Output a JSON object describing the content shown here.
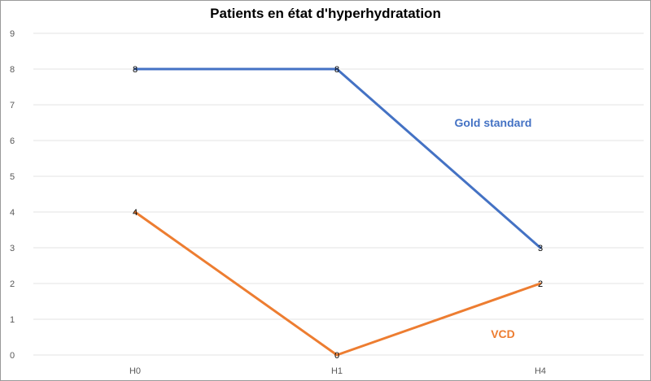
{
  "chart_data": {
    "type": "line",
    "title": "Patients en état d'hyperhydratation",
    "xlabel": "",
    "ylabel": "",
    "categories": [
      "H0",
      "H1",
      "H4"
    ],
    "ylim": [
      0,
      9
    ],
    "yticks": [
      0,
      1,
      2,
      3,
      4,
      5,
      6,
      7,
      8,
      9
    ],
    "grid": true,
    "legend": "inline labels next to lines",
    "series": [
      {
        "name": "Gold standard",
        "values": [
          8,
          8,
          3
        ],
        "color": "#4472C4"
      },
      {
        "name": "VCD",
        "values": [
          4,
          0,
          2
        ],
        "color": "#ED7D31"
      }
    ]
  }
}
